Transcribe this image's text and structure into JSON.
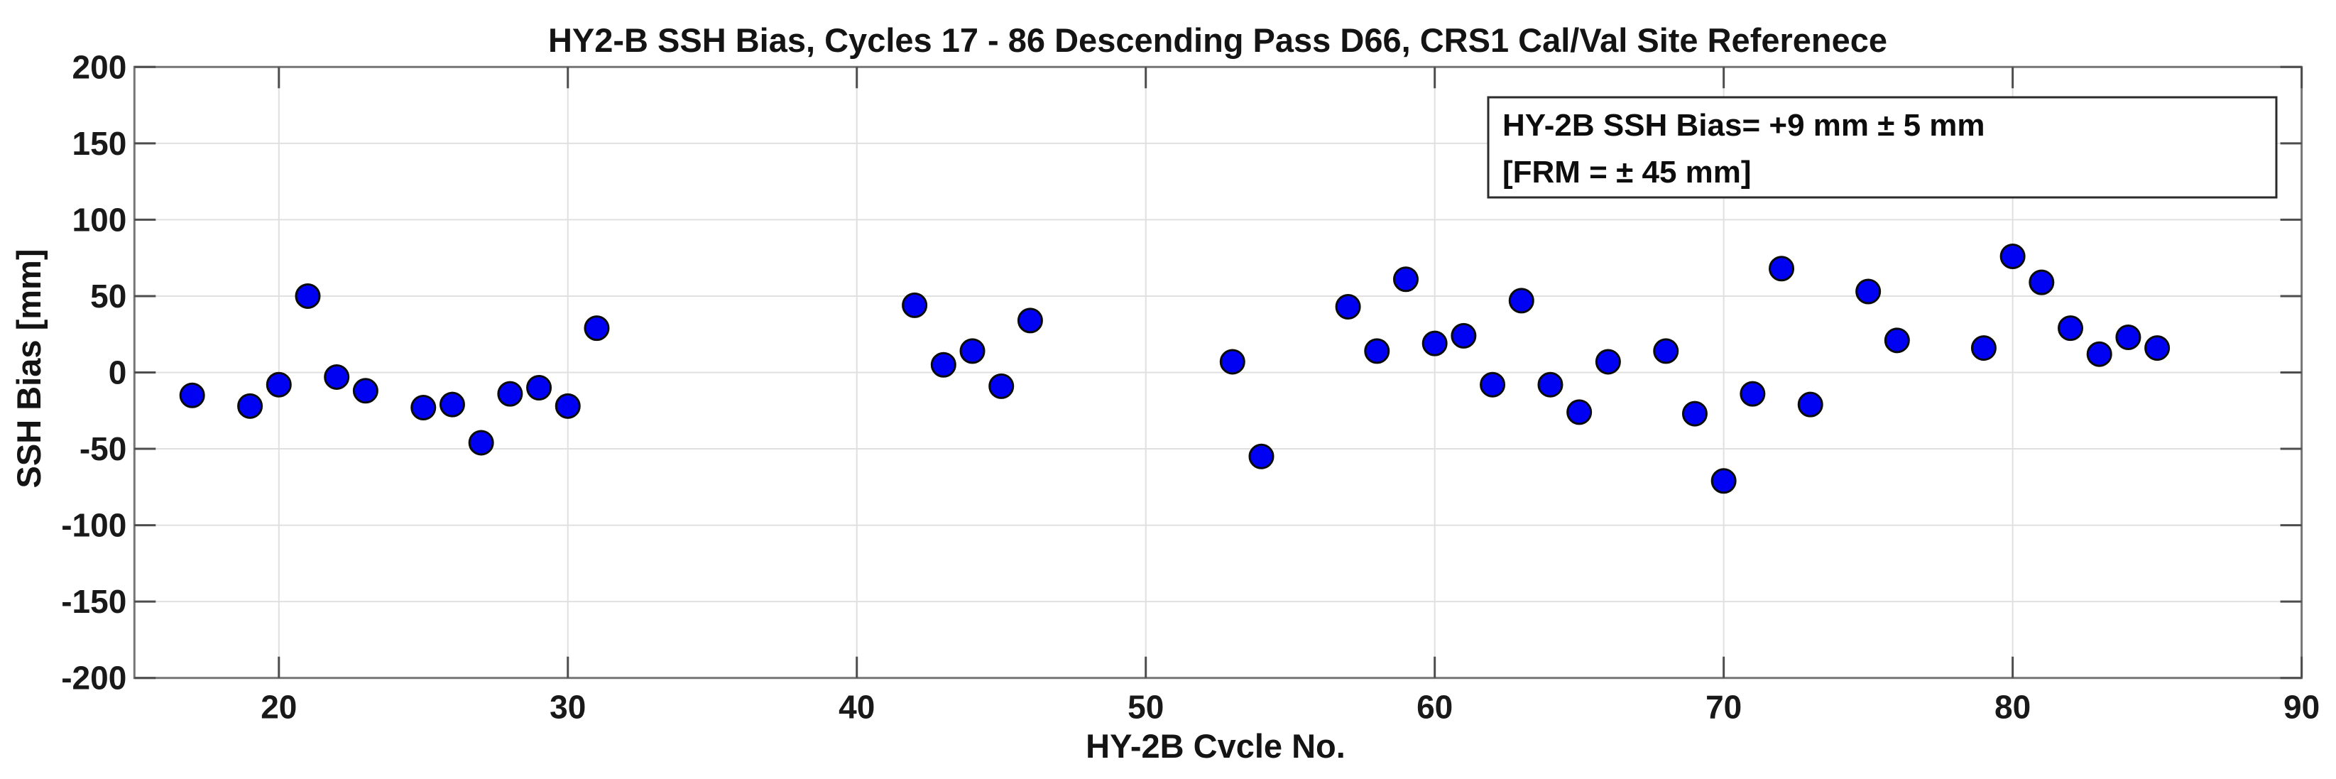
{
  "chart_data": {
    "type": "scatter",
    "title": "HY2-B SSH Bias, Cycles 17 - 86 Descending Pass D66, CRS1 Cal/Val Site Referenece",
    "xlabel": "HY-2B Cvcle No.",
    "ylabel": "SSH Bias [mm]",
    "xlim": [
      15,
      90
    ],
    "ylim": [
      -200,
      200
    ],
    "xticks": [
      20,
      30,
      40,
      50,
      60,
      70,
      80,
      90
    ],
    "yticks": [
      -200,
      -150,
      -100,
      -50,
      0,
      50,
      100,
      150,
      200
    ],
    "grid": true,
    "legend_position": "none",
    "marker_color": "#0000F2",
    "marker_edge_color": "#0b0b0b",
    "annotation": {
      "line1": "HY-2B SSH Bias= +9 mm ± 5 mm",
      "line2": "[FRM = ± 45 mm]"
    },
    "points": [
      [
        17,
        -15
      ],
      [
        19,
        -22
      ],
      [
        20,
        -8
      ],
      [
        21,
        50
      ],
      [
        22,
        -3
      ],
      [
        23,
        -12
      ],
      [
        25,
        -23
      ],
      [
        26,
        -21
      ],
      [
        27,
        -46
      ],
      [
        28,
        -14
      ],
      [
        29,
        -10
      ],
      [
        30,
        -22
      ],
      [
        31,
        29
      ],
      [
        42,
        44
      ],
      [
        43,
        5
      ],
      [
        44,
        14
      ],
      [
        45,
        -9
      ],
      [
        46,
        34
      ],
      [
        53,
        7
      ],
      [
        54,
        -55
      ],
      [
        57,
        43
      ],
      [
        58,
        14
      ],
      [
        59,
        61
      ],
      [
        60,
        19
      ],
      [
        61,
        24
      ],
      [
        62,
        -8
      ],
      [
        63,
        47
      ],
      [
        64,
        -8
      ],
      [
        65,
        -26
      ],
      [
        66,
        7
      ],
      [
        68,
        14
      ],
      [
        69,
        -27
      ],
      [
        70,
        -71
      ],
      [
        71,
        -14
      ],
      [
        72,
        68
      ],
      [
        73,
        -21
      ],
      [
        75,
        53
      ],
      [
        76,
        21
      ],
      [
        79,
        16
      ],
      [
        80,
        76
      ],
      [
        81,
        59
      ],
      [
        82,
        29
      ],
      [
        83,
        12
      ],
      [
        84,
        23
      ],
      [
        85,
        16
      ]
    ]
  }
}
